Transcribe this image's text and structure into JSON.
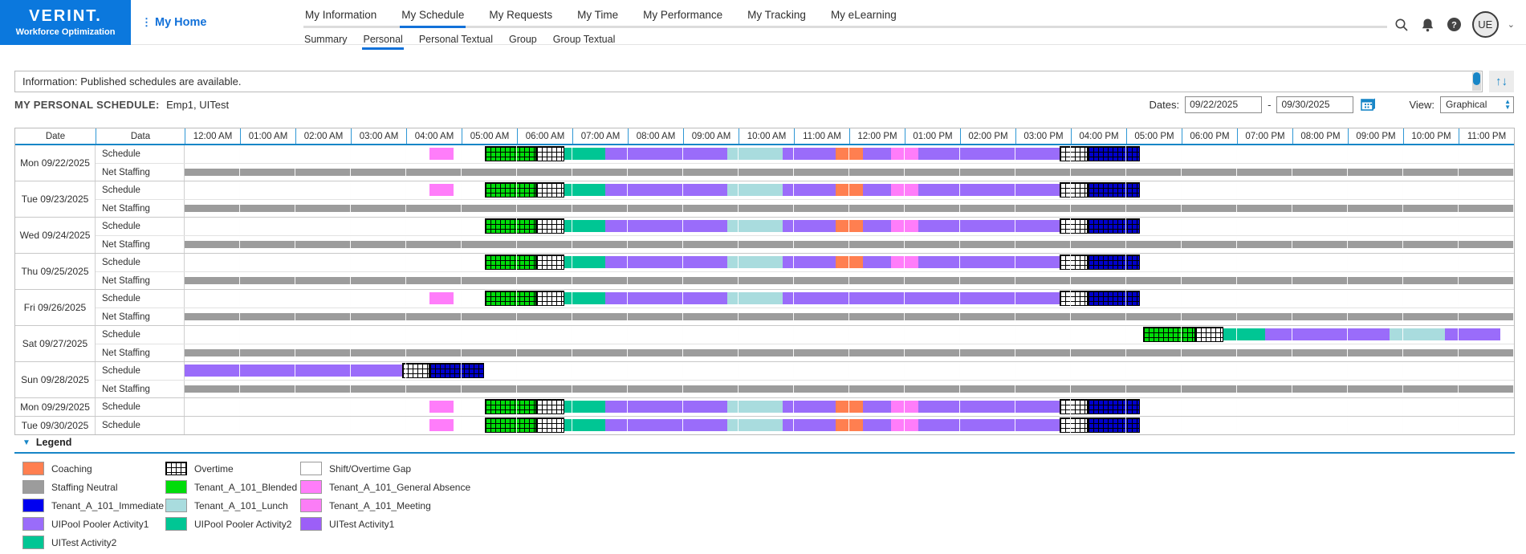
{
  "brand": {
    "name": "VERINT.",
    "tagline": "Workforce Optimization"
  },
  "page": {
    "home_label": "My Home"
  },
  "nav": {
    "tabs": [
      "My Information",
      "My Schedule",
      "My Requests",
      "My Time",
      "My Performance",
      "My Tracking",
      "My eLearning"
    ],
    "active_tab": "My Schedule",
    "subtabs": [
      "Summary",
      "Personal",
      "Personal Textual",
      "Group",
      "Group Textual"
    ],
    "active_subtab": "Personal"
  },
  "header_icons": {
    "avatar_initials": "UE"
  },
  "info_bar": {
    "text": "Information: Published schedules are available."
  },
  "schedule_header": {
    "title": "MY PERSONAL SCHEDULE:",
    "employee": "Emp1, UITest",
    "dates_label": "Dates:",
    "date_from": "09/22/2025",
    "date_to": "09/30/2025",
    "view_label": "View:",
    "view_value": "Graphical"
  },
  "table": {
    "date_col": "Date",
    "data_col": "Data",
    "hours": [
      "12:00 AM",
      "01:00 AM",
      "02:00 AM",
      "03:00 AM",
      "04:00 AM",
      "05:00 AM",
      "06:00 AM",
      "07:00 AM",
      "08:00 AM",
      "09:00 AM",
      "10:00 AM",
      "11:00 AM",
      "12:00 PM",
      "01:00 PM",
      "02:00 PM",
      "03:00 PM",
      "04:00 PM",
      "05:00 PM",
      "06:00 PM",
      "07:00 PM",
      "08:00 PM",
      "09:00 PM",
      "10:00 PM",
      "11:00 PM"
    ]
  },
  "colors": {
    "accent_blue": "#1271d9",
    "table_line_blue": "#1886c7",
    "net_staffing_gray": "#9c9c9c"
  },
  "segment_styles": {
    "meeting": {
      "color": "#ff7dfa",
      "hatch": false
    },
    "general_absence": {
      "color": "#ff7dfa",
      "hatch": false
    },
    "blended_ot": {
      "color": "#00dc0a",
      "hatch": true
    },
    "gap_ot": {
      "color": "#ffffff",
      "hatch": true
    },
    "activity2": {
      "color": "#00c694",
      "hatch": false
    },
    "pooler1": {
      "color": "#9a6cfa",
      "hatch": false
    },
    "lunch": {
      "color": "#a9dcde",
      "hatch": false
    },
    "coaching": {
      "color": "#ff7f50",
      "hatch": false
    },
    "immediate_ot": {
      "color": "#0000cc",
      "hatch": true
    }
  },
  "schedule_patterns": {
    "A": [
      {
        "s": 4.42,
        "e": 4.85,
        "k": "general_absence"
      },
      {
        "s": 5.42,
        "e": 6.35,
        "k": "blended_ot"
      },
      {
        "s": 6.35,
        "e": 6.85,
        "k": "gap_ot"
      },
      {
        "s": 6.85,
        "e": 7.6,
        "k": "activity2"
      },
      {
        "s": 7.6,
        "e": 9.8,
        "k": "pooler1"
      },
      {
        "s": 9.8,
        "e": 10.8,
        "k": "lunch"
      },
      {
        "s": 10.8,
        "e": 11.75,
        "k": "pooler1"
      },
      {
        "s": 11.75,
        "e": 12.25,
        "k": "coaching"
      },
      {
        "s": 12.25,
        "e": 12.75,
        "k": "pooler1"
      },
      {
        "s": 12.75,
        "e": 13.25,
        "k": "meeting"
      },
      {
        "s": 13.25,
        "e": 15.8,
        "k": "pooler1"
      },
      {
        "s": 15.8,
        "e": 16.3,
        "k": "gap_ot"
      },
      {
        "s": 16.3,
        "e": 17.25,
        "k": "immediate_ot"
      }
    ],
    "B": [
      {
        "s": 5.42,
        "e": 6.35,
        "k": "blended_ot"
      },
      {
        "s": 6.35,
        "e": 6.85,
        "k": "gap_ot"
      },
      {
        "s": 6.85,
        "e": 7.6,
        "k": "activity2"
      },
      {
        "s": 7.6,
        "e": 9.8,
        "k": "pooler1"
      },
      {
        "s": 9.8,
        "e": 10.8,
        "k": "lunch"
      },
      {
        "s": 10.8,
        "e": 11.75,
        "k": "pooler1"
      },
      {
        "s": 11.75,
        "e": 12.25,
        "k": "coaching"
      },
      {
        "s": 12.25,
        "e": 12.75,
        "k": "pooler1"
      },
      {
        "s": 12.75,
        "e": 13.25,
        "k": "meeting"
      },
      {
        "s": 13.25,
        "e": 15.8,
        "k": "pooler1"
      },
      {
        "s": 15.8,
        "e": 16.3,
        "k": "gap_ot"
      },
      {
        "s": 16.3,
        "e": 17.25,
        "k": "immediate_ot"
      }
    ],
    "C": [
      {
        "s": 4.42,
        "e": 4.85,
        "k": "general_absence"
      },
      {
        "s": 5.42,
        "e": 6.35,
        "k": "blended_ot"
      },
      {
        "s": 6.35,
        "e": 6.85,
        "k": "gap_ot"
      },
      {
        "s": 6.85,
        "e": 7.6,
        "k": "activity2"
      },
      {
        "s": 7.6,
        "e": 9.8,
        "k": "pooler1"
      },
      {
        "s": 9.8,
        "e": 10.8,
        "k": "lunch"
      },
      {
        "s": 10.8,
        "e": 15.8,
        "k": "pooler1"
      },
      {
        "s": 15.8,
        "e": 16.3,
        "k": "gap_ot"
      },
      {
        "s": 16.3,
        "e": 17.25,
        "k": "immediate_ot"
      }
    ],
    "D": [
      {
        "s": 17.3,
        "e": 18.25,
        "k": "blended_ot"
      },
      {
        "s": 18.25,
        "e": 18.75,
        "k": "gap_ot"
      },
      {
        "s": 18.75,
        "e": 19.5,
        "k": "activity2"
      },
      {
        "s": 19.5,
        "e": 21.75,
        "k": "pooler1"
      },
      {
        "s": 21.75,
        "e": 22.75,
        "k": "lunch"
      },
      {
        "s": 22.75,
        "e": 23.75,
        "k": "pooler1"
      }
    ],
    "E": [
      {
        "s": 0,
        "e": 3.93,
        "k": "pooler1"
      },
      {
        "s": 3.93,
        "e": 4.42,
        "k": "gap_ot"
      },
      {
        "s": 4.42,
        "e": 5.4,
        "k": "immediate_ot"
      }
    ]
  },
  "days": [
    {
      "date": "Mon 09/22/2025",
      "rows": [
        {
          "label": "Schedule",
          "pattern": "A"
        },
        {
          "label": "Net Staffing",
          "net": true
        }
      ]
    },
    {
      "date": "Tue 09/23/2025",
      "rows": [
        {
          "label": "Schedule",
          "pattern": "A"
        },
        {
          "label": "Net Staffing",
          "net": true
        }
      ]
    },
    {
      "date": "Wed 09/24/2025",
      "rows": [
        {
          "label": "Schedule",
          "pattern": "B"
        },
        {
          "label": "Net Staffing",
          "net": true
        }
      ]
    },
    {
      "date": "Thu 09/25/2025",
      "rows": [
        {
          "label": "Schedule",
          "pattern": "B"
        },
        {
          "label": "Net Staffing",
          "net": true
        }
      ]
    },
    {
      "date": "Fri 09/26/2025",
      "rows": [
        {
          "label": "Schedule",
          "pattern": "C"
        },
        {
          "label": "Net Staffing",
          "net": true
        }
      ]
    },
    {
      "date": "Sat 09/27/2025",
      "rows": [
        {
          "label": "Schedule",
          "pattern": "D"
        },
        {
          "label": "Net Staffing",
          "net": true
        }
      ]
    },
    {
      "date": "Sun 09/28/2025",
      "rows": [
        {
          "label": "Schedule",
          "pattern": "E"
        },
        {
          "label": "Net Staffing",
          "net": true
        }
      ]
    },
    {
      "date": "Mon 09/29/2025",
      "rows": [
        {
          "label": "Schedule",
          "pattern": "A"
        }
      ]
    },
    {
      "date": "Tue 09/30/2025",
      "rows": [
        {
          "label": "Schedule",
          "pattern": "A"
        }
      ]
    }
  ],
  "legend": {
    "title": "Legend",
    "items": [
      {
        "label": "Coaching",
        "color": "#ff7f50",
        "hatch": false
      },
      {
        "label": "Overtime",
        "color": "#ffffff",
        "hatch": true
      },
      {
        "label": "Shift/Overtime Gap",
        "color": "#ffffff",
        "hatch": false
      },
      {
        "label": "Staffing Neutral",
        "color": "#9c9c9c",
        "hatch": false
      },
      {
        "label": "Tenant_A_101_Blended",
        "color": "#00dc0a",
        "hatch": false
      },
      {
        "label": "Tenant_A_101_General Absence",
        "color": "#ff7dfa",
        "hatch": false
      },
      {
        "label": "Tenant_A_101_Immediate",
        "color": "#0000f0",
        "hatch": false
      },
      {
        "label": "Tenant_A_101_Lunch",
        "color": "#a9dcde",
        "hatch": false
      },
      {
        "label": "Tenant_A_101_Meeting",
        "color": "#fb7df6",
        "hatch": false
      },
      {
        "label": "UIPool Pooler Activity1",
        "color": "#9a6cfa",
        "hatch": false
      },
      {
        "label": "UIPool Pooler Activity2",
        "color": "#00c694",
        "hatch": false
      },
      {
        "label": "UITest Activity1",
        "color": "#9c5ff7",
        "hatch": false
      },
      {
        "label": "UITest Activity2",
        "color": "#00c694",
        "hatch": false
      }
    ]
  }
}
